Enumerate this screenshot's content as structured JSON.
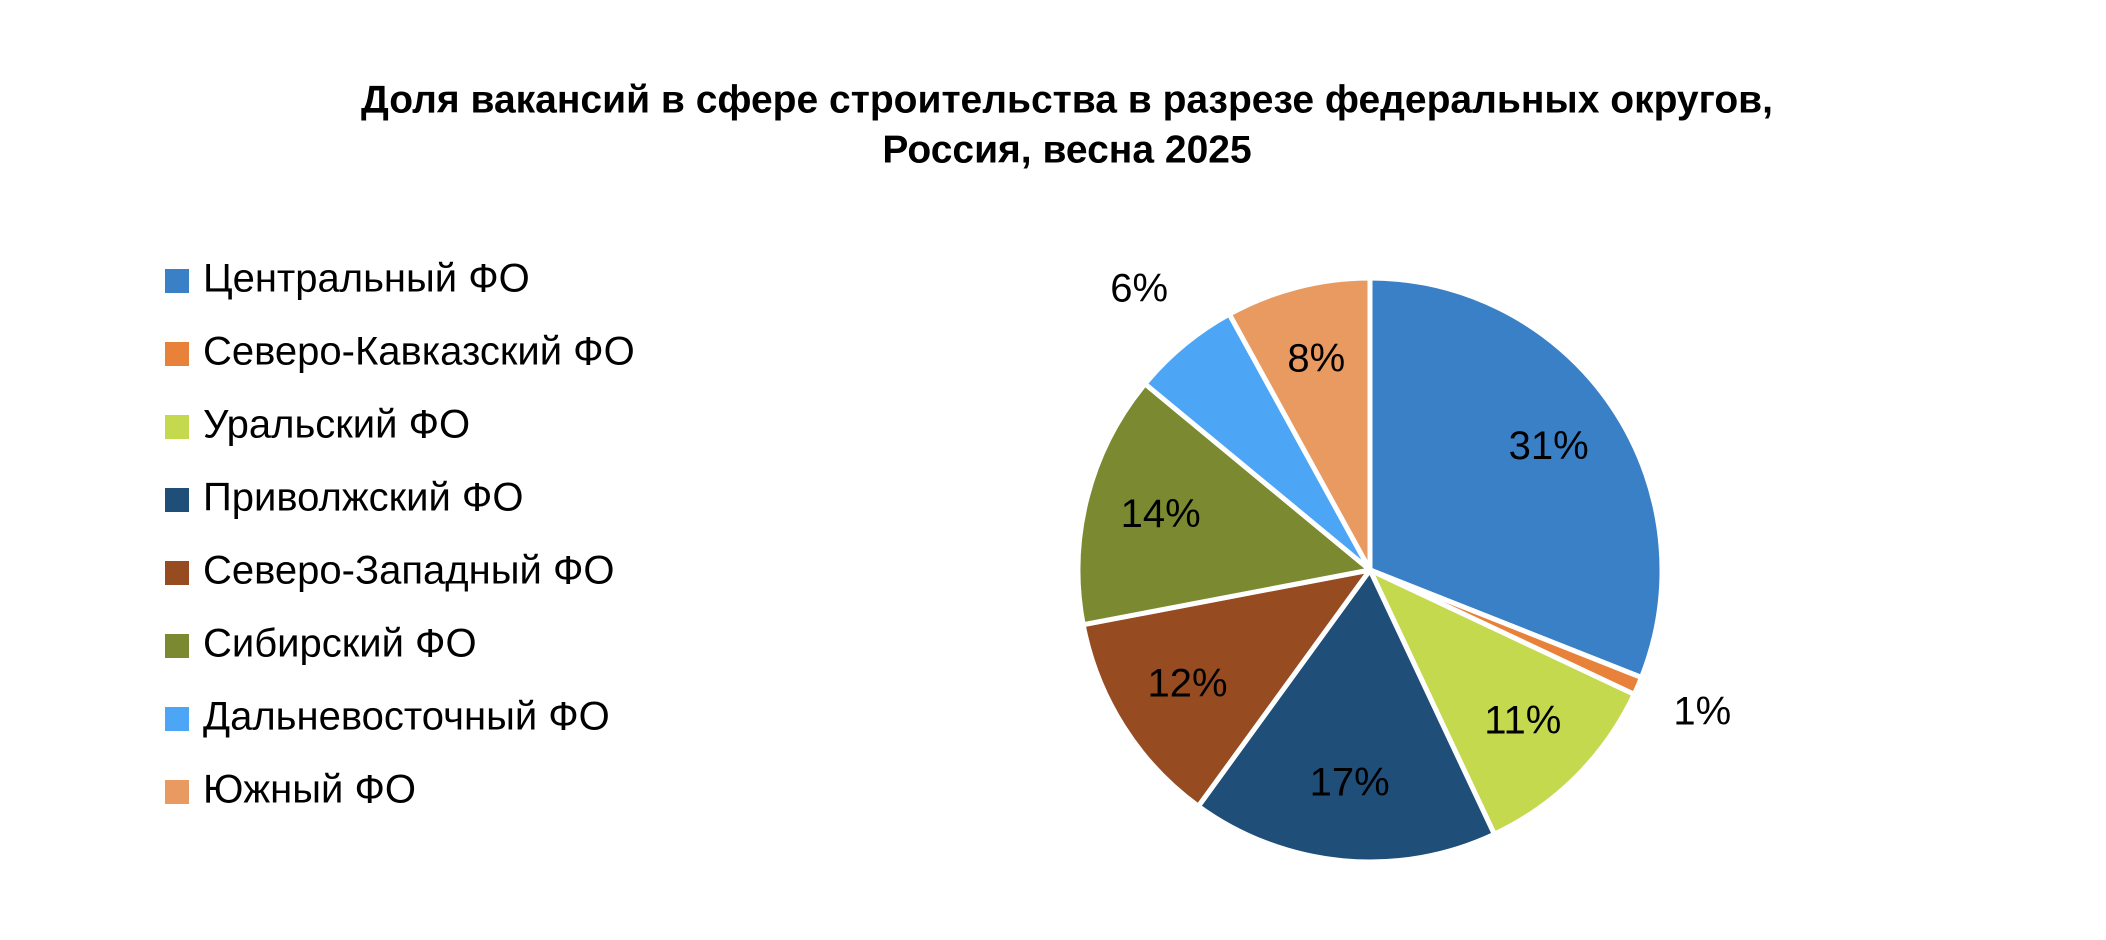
{
  "chart_data": {
    "type": "pie",
    "title": [
      "Доля вакансий в сфере строительства в разрезе федеральных округов,",
      "Россия, весна 2025"
    ],
    "categories": [
      "Центральный ФО",
      "Северо-Кавказский ФО",
      "Уральский ФО",
      "Приволжский ФО",
      "Северо-Западный ФО",
      "Сибирский ФО",
      "Дальневосточный ФО",
      "Южный ФО"
    ],
    "values": [
      31,
      1,
      11,
      17,
      12,
      14,
      6,
      8
    ],
    "value_labels": [
      "31%",
      "1%",
      "11%",
      "17%",
      "12%",
      "14%",
      "6%",
      "8%"
    ],
    "colors": [
      "#3a80c6",
      "#e8823a",
      "#c5d94e",
      "#1f4e79",
      "#964b20",
      "#7b8a31",
      "#4da6f5",
      "#e99a60"
    ],
    "legend": "left"
  }
}
